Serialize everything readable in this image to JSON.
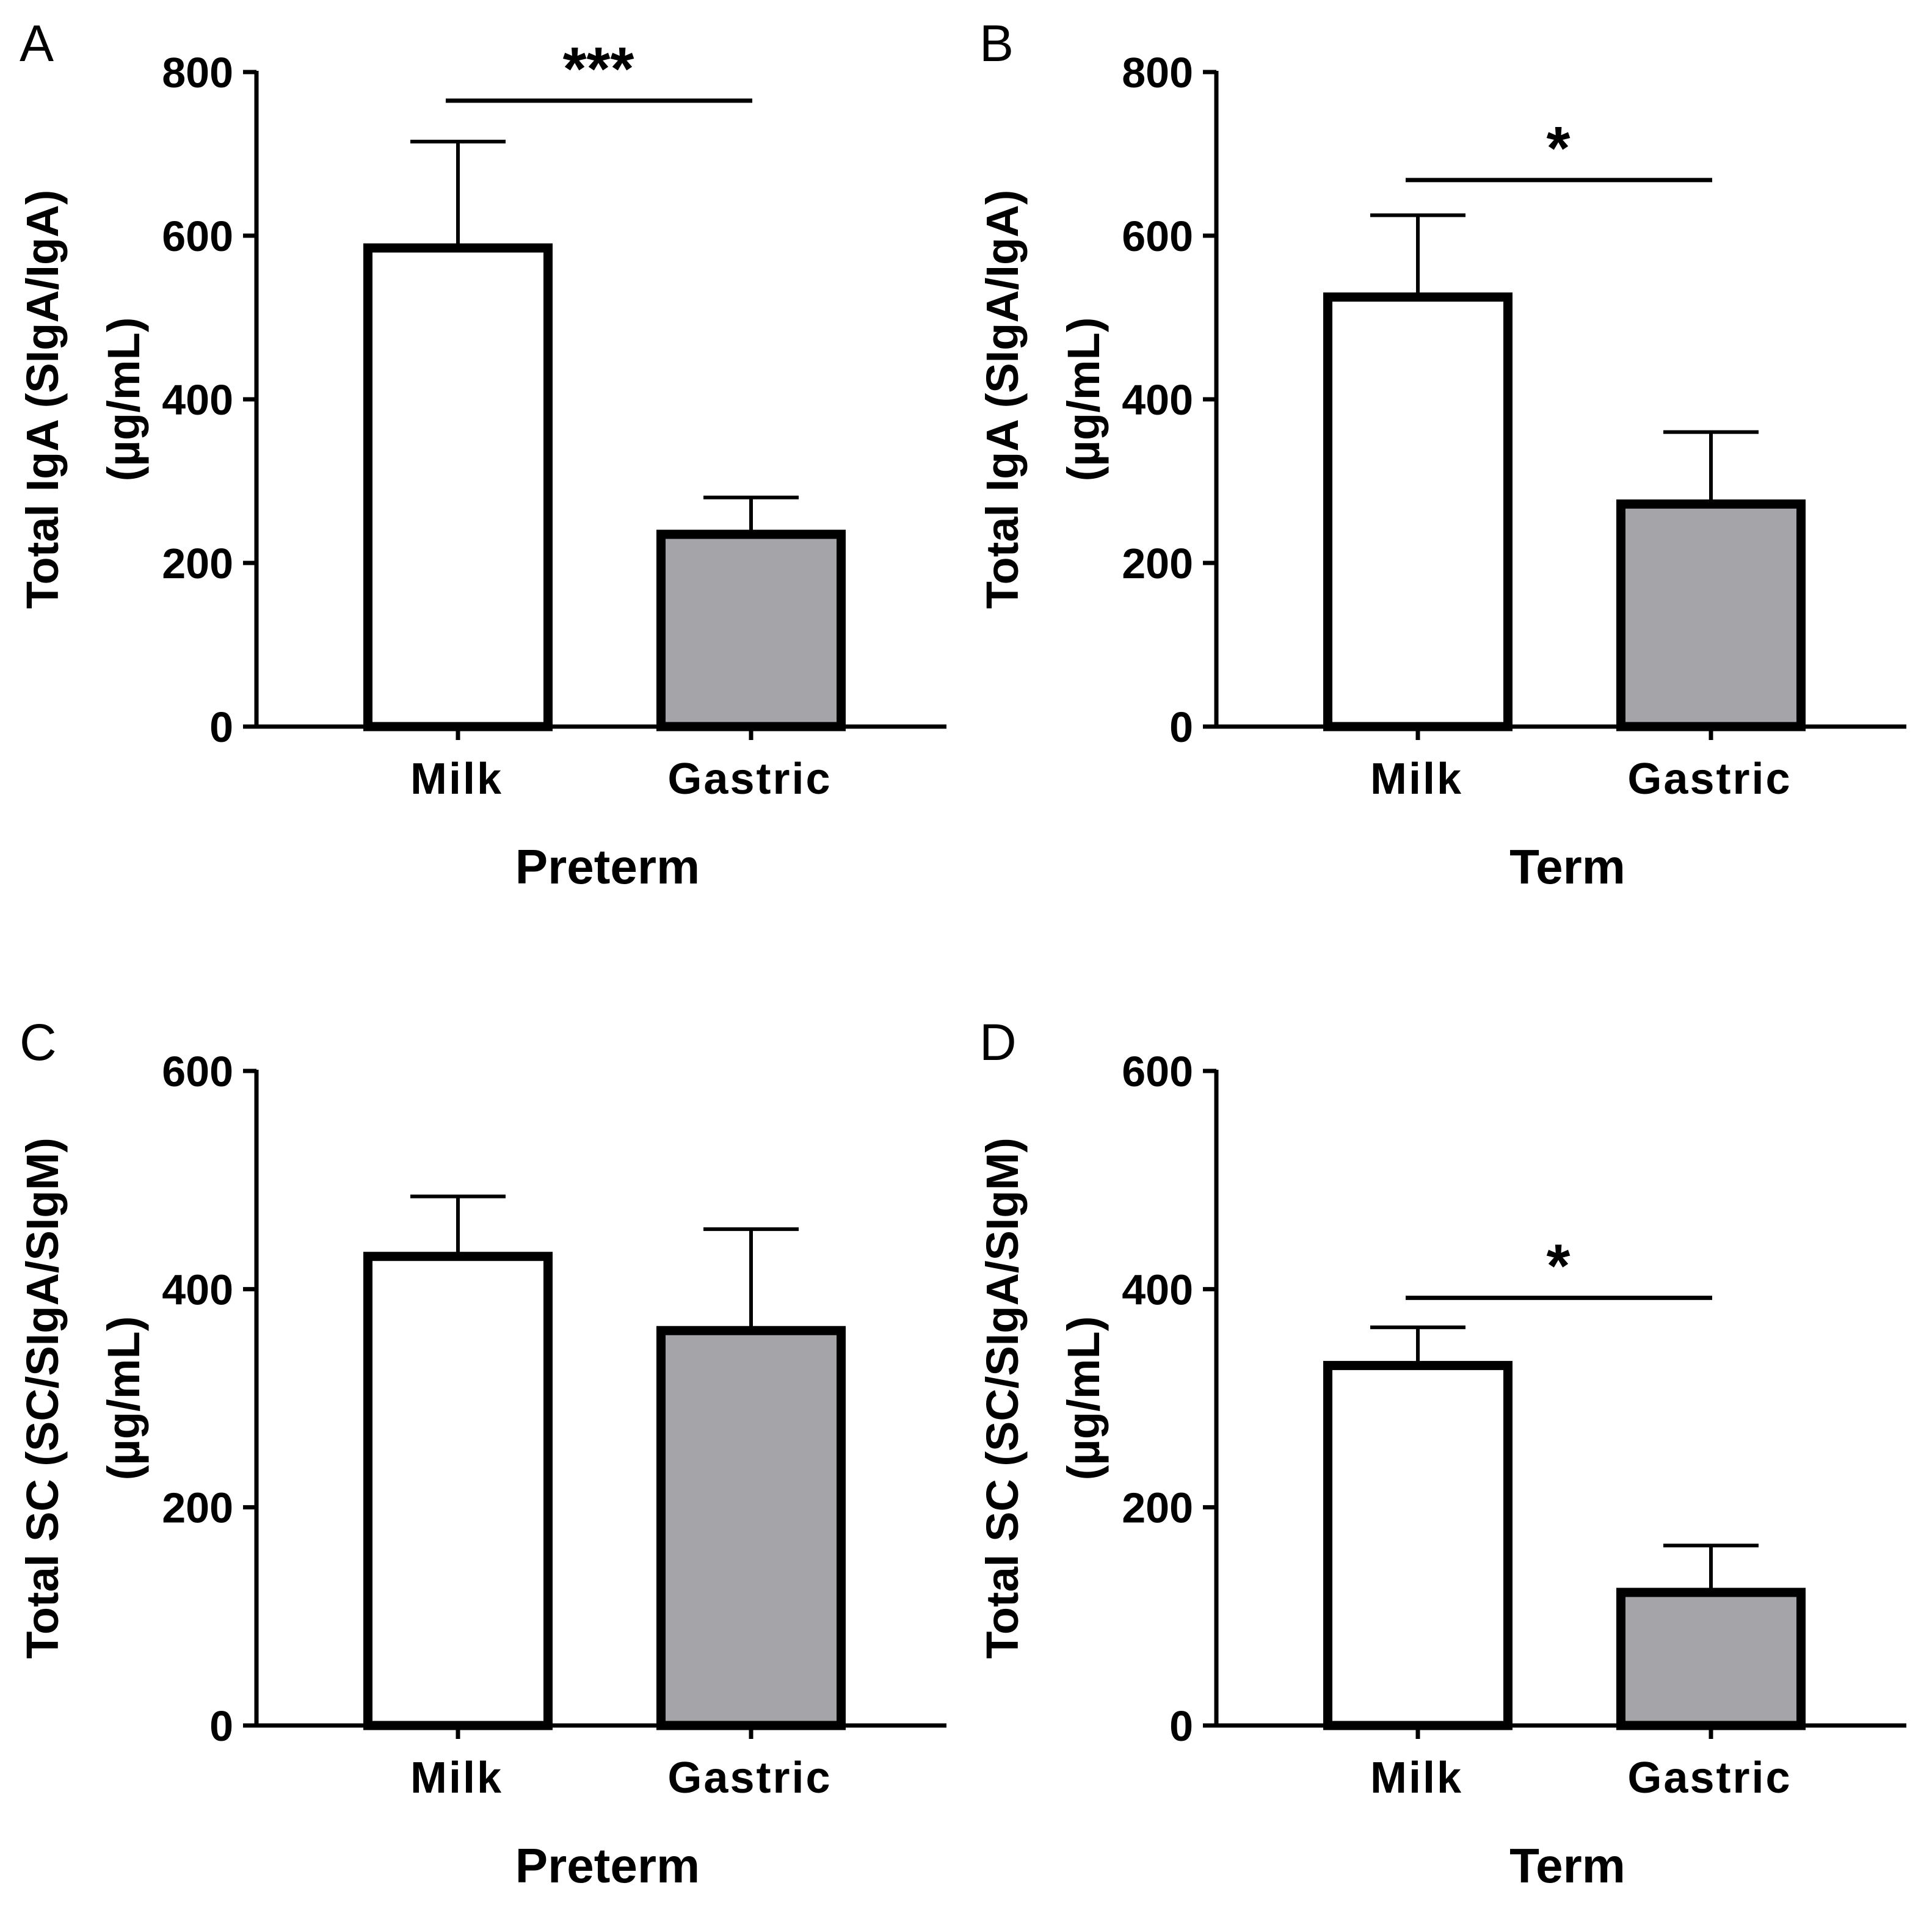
{
  "figure": {
    "bar_stroke_color": "#000000",
    "milk_fill_color": "#ffffff",
    "gastric_fill_color": "#a5a4a9"
  },
  "chart_data": [
    {
      "panel": "A",
      "type": "bar",
      "categories": [
        "Milk",
        "Gastric"
      ],
      "values": [
        585,
        235
      ],
      "error_upper": [
        715,
        280
      ],
      "xlabel": "Preterm",
      "ylabel_line1": "Total IgA (SIgA/IgA)",
      "ylabel_line2": "(µg/mL)",
      "ylim": [
        0,
        800
      ],
      "yticks": [
        0,
        200,
        400,
        600,
        800
      ],
      "significance": {
        "label": "***",
        "y": 765
      }
    },
    {
      "panel": "B",
      "type": "bar",
      "categories": [
        "Milk",
        "Gastric"
      ],
      "values": [
        525,
        272
      ],
      "error_upper": [
        625,
        360
      ],
      "xlabel": "Term",
      "ylabel_line1": "Total IgA (SIgA/IgA)",
      "ylabel_line2": "(µg/mL)",
      "ylim": [
        0,
        800
      ],
      "yticks": [
        0,
        200,
        400,
        600,
        800
      ],
      "significance": {
        "label": "*",
        "y": 668
      }
    },
    {
      "panel": "C",
      "type": "bar",
      "categories": [
        "Milk",
        "Gastric"
      ],
      "values": [
        430,
        362
      ],
      "error_upper": [
        485,
        455
      ],
      "xlabel": "Preterm",
      "ylabel_line1": "Total SC (SC/SIgA/SIgM)",
      "ylabel_line2": "(µg/mL)",
      "ylim": [
        0,
        600
      ],
      "yticks": [
        0,
        200,
        400,
        600
      ],
      "significance": null
    },
    {
      "panel": "D",
      "type": "bar",
      "categories": [
        "Milk",
        "Gastric"
      ],
      "values": [
        330,
        122
      ],
      "error_upper": [
        365,
        165
      ],
      "xlabel": "Term",
      "ylabel_line1": "Total SC (SC/SIgA/SIgM)",
      "ylabel_line2": "(µg/mL)",
      "ylim": [
        0,
        600
      ],
      "yticks": [
        0,
        200,
        400,
        600
      ],
      "significance": {
        "label": "*",
        "y": 392
      }
    }
  ]
}
